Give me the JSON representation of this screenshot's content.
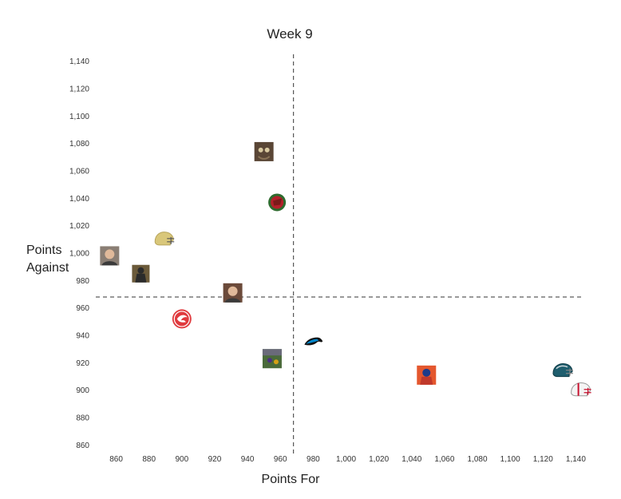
{
  "chart_data": {
    "type": "scatter",
    "title": "Week 9",
    "xlabel": "Points For",
    "ylabel_lines": [
      "Points",
      "Against"
    ],
    "xlim": [
      850,
      1150
    ],
    "ylim": [
      855,
      1145
    ],
    "x_ticks": [
      860,
      880,
      900,
      920,
      940,
      960,
      980,
      1000,
      1020,
      1040,
      1060,
      1080,
      1100,
      1120,
      1140
    ],
    "x_tick_labels": [
      "860",
      "880",
      "900",
      "920",
      "940",
      "960",
      "980",
      "1,000",
      "1,020",
      "1,040",
      "1,060",
      "1,080",
      "1,100",
      "1,120",
      "1,140"
    ],
    "y_ticks": [
      860,
      880,
      900,
      920,
      940,
      960,
      980,
      1000,
      1020,
      1040,
      1060,
      1080,
      1100,
      1120,
      1140
    ],
    "y_tick_labels": [
      "860",
      "880",
      "900",
      "920",
      "940",
      "960",
      "980",
      "1,000",
      "1,020",
      "1,040",
      "1,060",
      "1,080",
      "1,100",
      "1,120",
      "1,140"
    ],
    "avg_x": 968,
    "avg_y": 968,
    "grid": false,
    "points": [
      {
        "x": 950,
        "y": 1074,
        "icon": "owl-photo-icon",
        "color": "#5a4636"
      },
      {
        "x": 958,
        "y": 1037,
        "icon": "cardinal-logo-icon",
        "color": "#b3202a"
      },
      {
        "x": 889,
        "y": 1010,
        "icon": "gold-helmet-icon",
        "color": "#d9c77a"
      },
      {
        "x": 856,
        "y": 998,
        "icon": "person-photo-icon",
        "color": "#8a7e74"
      },
      {
        "x": 875,
        "y": 985,
        "icon": "dark-figure-icon",
        "color": "#2b2b2b"
      },
      {
        "x": 931,
        "y": 971,
        "icon": "person-photo-icon",
        "color": "#6b4a3a"
      },
      {
        "x": 900,
        "y": 952,
        "icon": "hawks-logo-icon",
        "color": "#e03a3e"
      },
      {
        "x": 955,
        "y": 923,
        "icon": "field-photo-icon",
        "color": "#4a6a3a"
      },
      {
        "x": 980,
        "y": 935,
        "icon": "panther-logo-icon",
        "color": "#0085ca"
      },
      {
        "x": 1049,
        "y": 911,
        "icon": "player-photo-icon",
        "color": "#e4572e"
      },
      {
        "x": 1132,
        "y": 914,
        "icon": "teal-helmet-icon",
        "color": "#1f5e6e"
      },
      {
        "x": 1143,
        "y": 900,
        "icon": "white-helmet-icon",
        "color": "#c8102e"
      }
    ]
  }
}
